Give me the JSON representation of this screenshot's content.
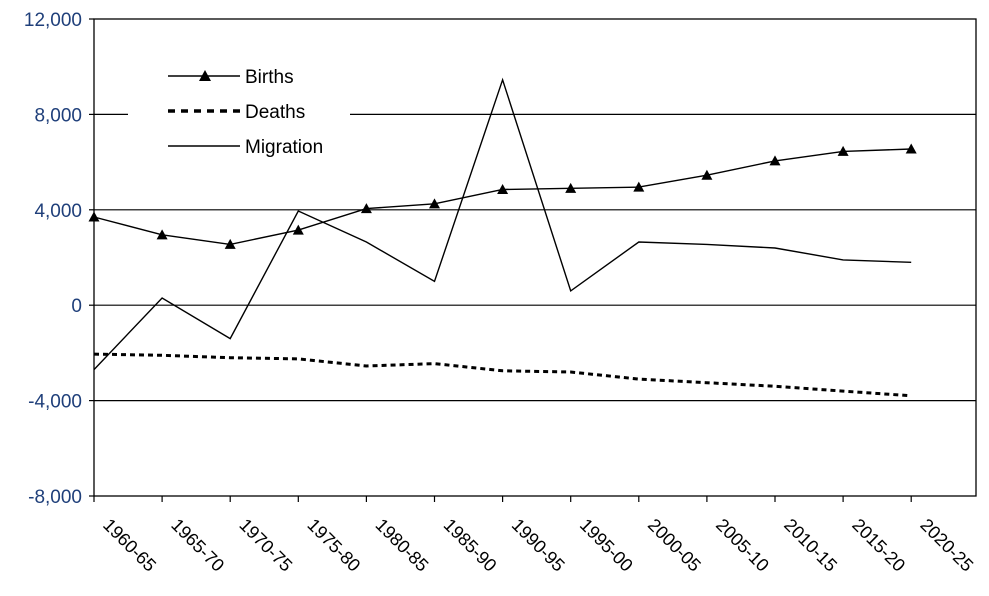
{
  "chart_data": {
    "type": "line",
    "title": "",
    "xlabel": "",
    "ylabel": "",
    "ylim": [
      -8000,
      12000
    ],
    "yticks": [
      {
        "value": 12000,
        "label": "12,000"
      },
      {
        "value": 8000,
        "label": "8,000"
      },
      {
        "value": 4000,
        "label": "4,000"
      },
      {
        "value": 0,
        "label": "0"
      },
      {
        "value": -4000,
        "label": "-4,000"
      },
      {
        "value": -8000,
        "label": "-8,000"
      }
    ],
    "gridlines": [
      8000,
      4000,
      0,
      -4000
    ],
    "categories": [
      "1960-65",
      "1965-70",
      "1970-75",
      "1975-80",
      "1980-85",
      "1985-90",
      "1990-95",
      "1995-00",
      "2000-05",
      "2005-10",
      "2010-15",
      "2015-20",
      "2020-25"
    ],
    "legend_position": "top-left",
    "series": [
      {
        "name": "Births",
        "style": "solid-triangle",
        "color": "#000000",
        "values": [
          3700,
          2950,
          2550,
          3150,
          4050,
          4250,
          4850,
          4900,
          4950,
          5450,
          6050,
          6450,
          6550
        ]
      },
      {
        "name": "Deaths",
        "style": "dotted",
        "color": "#000000",
        "values": [
          -2050,
          -2100,
          -2200,
          -2250,
          -2550,
          -2450,
          -2750,
          -2800,
          -3100,
          -3250,
          -3400,
          -3600,
          -3800
        ]
      },
      {
        "name": "Migration",
        "style": "solid",
        "color": "#000000",
        "values": [
          -2700,
          300,
          -1400,
          3950,
          2650,
          1000,
          9450,
          600,
          2650,
          2550,
          2400,
          1900,
          1800
        ]
      }
    ]
  }
}
